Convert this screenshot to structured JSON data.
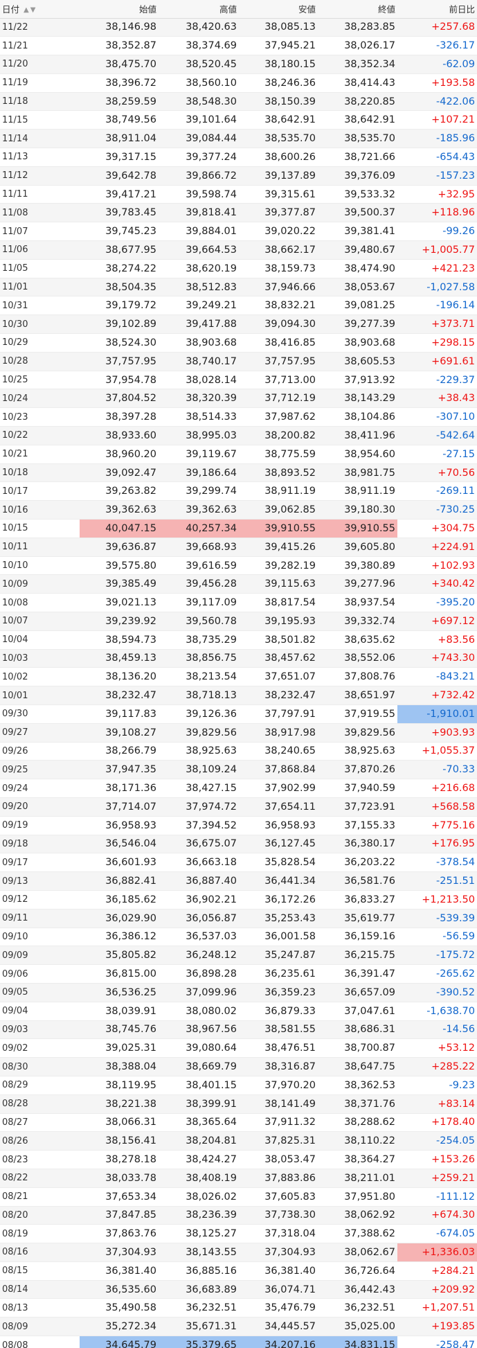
{
  "columns": [
    "日付",
    "始値",
    "高値",
    "安値",
    "終値",
    "前日比"
  ],
  "colors": {
    "positive": "#ee1111",
    "negative": "#1166cc",
    "high_highlight": "#f6b3b3",
    "low_highlight": "#9ec4f2"
  },
  "rows": [
    [
      "11/22",
      "38,146.98",
      "38,420.63",
      "38,085.13",
      "38,283.85",
      "+257.68"
    ],
    [
      "11/21",
      "38,352.87",
      "38,374.69",
      "37,945.21",
      "38,026.17",
      "-326.17"
    ],
    [
      "11/20",
      "38,475.70",
      "38,520.45",
      "38,180.15",
      "38,352.34",
      "-62.09"
    ],
    [
      "11/19",
      "38,396.72",
      "38,560.10",
      "38,246.36",
      "38,414.43",
      "+193.58"
    ],
    [
      "11/18",
      "38,259.59",
      "38,548.30",
      "38,150.39",
      "38,220.85",
      "-422.06"
    ],
    [
      "11/15",
      "38,749.56",
      "39,101.64",
      "38,642.91",
      "38,642.91",
      "+107.21"
    ],
    [
      "11/14",
      "38,911.04",
      "39,084.44",
      "38,535.70",
      "38,535.70",
      "-185.96"
    ],
    [
      "11/13",
      "39,317.15",
      "39,377.24",
      "38,600.26",
      "38,721.66",
      "-654.43"
    ],
    [
      "11/12",
      "39,642.78",
      "39,866.72",
      "39,137.89",
      "39,376.09",
      "-157.23"
    ],
    [
      "11/11",
      "39,417.21",
      "39,598.74",
      "39,315.61",
      "39,533.32",
      "+32.95"
    ],
    [
      "11/08",
      "39,783.45",
      "39,818.41",
      "39,377.87",
      "39,500.37",
      "+118.96"
    ],
    [
      "11/07",
      "39,745.23",
      "39,884.01",
      "39,020.22",
      "39,381.41",
      "-99.26"
    ],
    [
      "11/06",
      "38,677.95",
      "39,664.53",
      "38,662.17",
      "39,480.67",
      "+1,005.77"
    ],
    [
      "11/05",
      "38,274.22",
      "38,620.19",
      "38,159.73",
      "38,474.90",
      "+421.23"
    ],
    [
      "11/01",
      "38,504.35",
      "38,512.83",
      "37,946.66",
      "38,053.67",
      "-1,027.58"
    ],
    [
      "10/31",
      "39,179.72",
      "39,249.21",
      "38,832.21",
      "39,081.25",
      "-196.14"
    ],
    [
      "10/30",
      "39,102.89",
      "39,417.88",
      "39,094.30",
      "39,277.39",
      "+373.71"
    ],
    [
      "10/29",
      "38,524.30",
      "38,903.68",
      "38,416.85",
      "38,903.68",
      "+298.15"
    ],
    [
      "10/28",
      "37,757.95",
      "38,740.17",
      "37,757.95",
      "38,605.53",
      "+691.61"
    ],
    [
      "10/25",
      "37,954.78",
      "38,028.14",
      "37,713.00",
      "37,913.92",
      "-229.37"
    ],
    [
      "10/24",
      "37,804.52",
      "38,320.39",
      "37,712.19",
      "38,143.29",
      "+38.43"
    ],
    [
      "10/23",
      "38,397.28",
      "38,514.33",
      "37,987.62",
      "38,104.86",
      "-307.10"
    ],
    [
      "10/22",
      "38,933.60",
      "38,995.03",
      "38,200.82",
      "38,411.96",
      "-542.64"
    ],
    [
      "10/21",
      "38,960.20",
      "39,119.67",
      "38,775.59",
      "38,954.60",
      "-27.15"
    ],
    [
      "10/18",
      "39,092.47",
      "39,186.64",
      "38,893.52",
      "38,981.75",
      "+70.56"
    ],
    [
      "10/17",
      "39,263.82",
      "39,299.74",
      "38,911.19",
      "38,911.19",
      "-269.11"
    ],
    [
      "10/16",
      "39,362.63",
      "39,362.63",
      "39,062.85",
      "39,180.30",
      "-730.25"
    ],
    [
      "10/15",
      "40,047.15",
      "40,257.34",
      "39,910.55",
      "39,910.55",
      "+304.75"
    ],
    [
      "10/11",
      "39,636.87",
      "39,668.93",
      "39,415.26",
      "39,605.80",
      "+224.91"
    ],
    [
      "10/10",
      "39,575.80",
      "39,616.59",
      "39,282.19",
      "39,380.89",
      "+102.93"
    ],
    [
      "10/09",
      "39,385.49",
      "39,456.28",
      "39,115.63",
      "39,277.96",
      "+340.42"
    ],
    [
      "10/08",
      "39,021.13",
      "39,117.09",
      "38,817.54",
      "38,937.54",
      "-395.20"
    ],
    [
      "10/07",
      "39,239.92",
      "39,560.78",
      "39,195.93",
      "39,332.74",
      "+697.12"
    ],
    [
      "10/04",
      "38,594.73",
      "38,735.29",
      "38,501.82",
      "38,635.62",
      "+83.56"
    ],
    [
      "10/03",
      "38,459.13",
      "38,856.75",
      "38,457.62",
      "38,552.06",
      "+743.30"
    ],
    [
      "10/02",
      "38,136.20",
      "38,213.54",
      "37,651.07",
      "37,808.76",
      "-843.21"
    ],
    [
      "10/01",
      "38,232.47",
      "38,718.13",
      "38,232.47",
      "38,651.97",
      "+732.42"
    ],
    [
      "09/30",
      "39,117.83",
      "39,126.36",
      "37,797.91",
      "37,919.55",
      "-1,910.01"
    ],
    [
      "09/27",
      "39,108.27",
      "39,829.56",
      "38,917.98",
      "39,829.56",
      "+903.93"
    ],
    [
      "09/26",
      "38,266.79",
      "38,925.63",
      "38,240.65",
      "38,925.63",
      "+1,055.37"
    ],
    [
      "09/25",
      "37,947.35",
      "38,109.24",
      "37,868.84",
      "37,870.26",
      "-70.33"
    ],
    [
      "09/24",
      "38,171.36",
      "38,427.15",
      "37,902.99",
      "37,940.59",
      "+216.68"
    ],
    [
      "09/20",
      "37,714.07",
      "37,974.72",
      "37,654.11",
      "37,723.91",
      "+568.58"
    ],
    [
      "09/19",
      "36,958.93",
      "37,394.52",
      "36,958.93",
      "37,155.33",
      "+775.16"
    ],
    [
      "09/18",
      "36,546.04",
      "36,675.07",
      "36,127.45",
      "36,380.17",
      "+176.95"
    ],
    [
      "09/17",
      "36,601.93",
      "36,663.18",
      "35,828.54",
      "36,203.22",
      "-378.54"
    ],
    [
      "09/13",
      "36,882.41",
      "36,887.40",
      "36,441.34",
      "36,581.76",
      "-251.51"
    ],
    [
      "09/12",
      "36,185.62",
      "36,902.21",
      "36,172.26",
      "36,833.27",
      "+1,213.50"
    ],
    [
      "09/11",
      "36,029.90",
      "36,056.87",
      "35,253.43",
      "35,619.77",
      "-539.39"
    ],
    [
      "09/10",
      "36,386.12",
      "36,537.03",
      "36,001.58",
      "36,159.16",
      "-56.59"
    ],
    [
      "09/09",
      "35,805.82",
      "36,248.12",
      "35,247.87",
      "36,215.75",
      "-175.72"
    ],
    [
      "09/06",
      "36,815.00",
      "36,898.28",
      "36,235.61",
      "36,391.47",
      "-265.62"
    ],
    [
      "09/05",
      "36,536.25",
      "37,099.96",
      "36,359.23",
      "36,657.09",
      "-390.52"
    ],
    [
      "09/04",
      "38,039.91",
      "38,080.02",
      "36,879.33",
      "37,047.61",
      "-1,638.70"
    ],
    [
      "09/03",
      "38,745.76",
      "38,967.56",
      "38,581.55",
      "38,686.31",
      "-14.56"
    ],
    [
      "09/02",
      "39,025.31",
      "39,080.64",
      "38,476.51",
      "38,700.87",
      "+53.12"
    ],
    [
      "08/30",
      "38,388.04",
      "38,669.79",
      "38,316.87",
      "38,647.75",
      "+285.22"
    ],
    [
      "08/29",
      "38,119.95",
      "38,401.15",
      "37,970.20",
      "38,362.53",
      "-9.23"
    ],
    [
      "08/28",
      "38,221.38",
      "38,399.91",
      "38,141.49",
      "38,371.76",
      "+83.14"
    ],
    [
      "08/27",
      "38,066.31",
      "38,365.64",
      "37,911.32",
      "38,288.62",
      "+178.40"
    ],
    [
      "08/26",
      "38,156.41",
      "38,204.81",
      "37,825.31",
      "38,110.22",
      "-254.05"
    ],
    [
      "08/23",
      "38,278.18",
      "38,424.27",
      "38,053.47",
      "38,364.27",
      "+153.26"
    ],
    [
      "08/22",
      "38,033.78",
      "38,408.19",
      "37,883.86",
      "38,211.01",
      "+259.21"
    ],
    [
      "08/21",
      "37,653.34",
      "38,026.02",
      "37,605.83",
      "37,951.80",
      "-111.12"
    ],
    [
      "08/20",
      "37,847.85",
      "38,236.39",
      "37,738.30",
      "38,062.92",
      "+674.30"
    ],
    [
      "08/19",
      "37,863.76",
      "38,125.27",
      "37,318.04",
      "37,388.62",
      "-674.05"
    ],
    [
      "08/16",
      "37,304.93",
      "38,143.55",
      "37,304.93",
      "38,062.67",
      "+1,336.03"
    ],
    [
      "08/15",
      "36,381.40",
      "36,885.16",
      "36,381.40",
      "36,726.64",
      "+284.21"
    ],
    [
      "08/14",
      "36,535.60",
      "36,683.89",
      "36,074.71",
      "36,442.43",
      "+209.92"
    ],
    [
      "08/13",
      "35,490.58",
      "36,232.51",
      "35,476.79",
      "36,232.51",
      "+1,207.51"
    ],
    [
      "08/09",
      "35,272.34",
      "35,671.31",
      "34,445.57",
      "35,025.00",
      "+193.85"
    ],
    [
      "08/08",
      "34,645.79",
      "35,379.65",
      "34,207.16",
      "34,831.15",
      "-258.47"
    ]
  ]
}
